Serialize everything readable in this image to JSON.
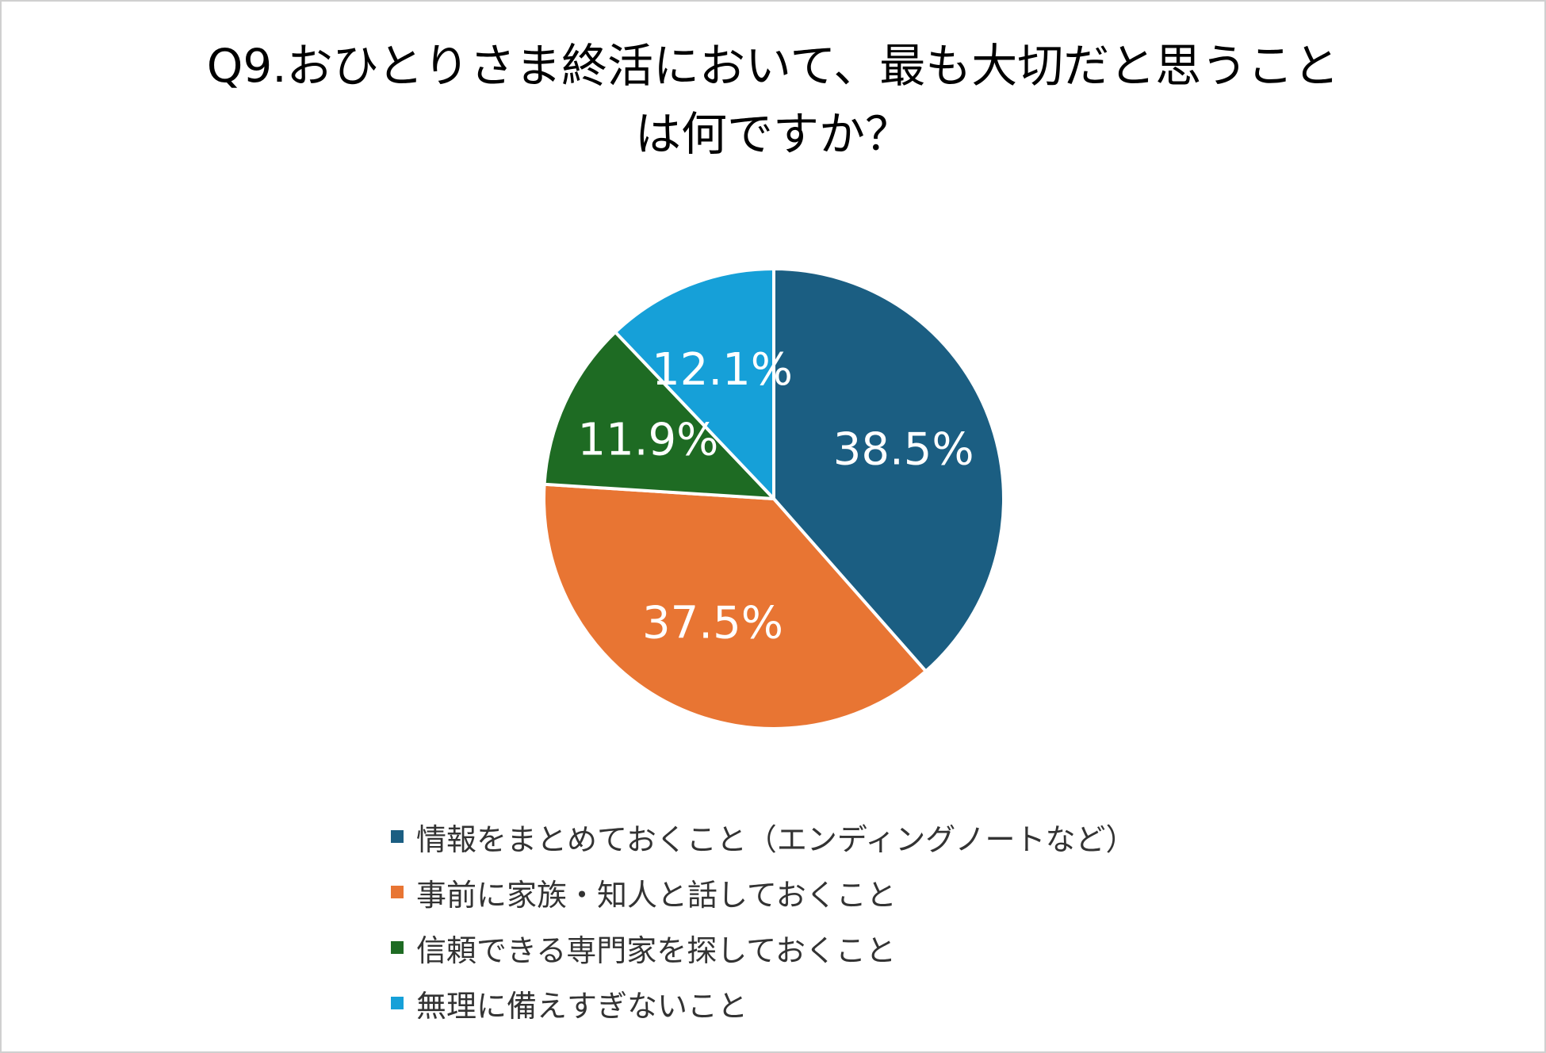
{
  "chart_data": {
    "type": "pie",
    "title": "Q9.おひとりさま終活において、最も大切だと思うことは何ですか？",
    "title_lines": [
      "Q9.おひとりさま終活において、最も大切だと思うこと",
      "は何ですか？"
    ],
    "legend_placement": "bottom",
    "slices": [
      {
        "label": "情報をまとめておくこと（エンディングノートなど）",
        "value": 38.5,
        "display": "38.5%",
        "color": "#1b5e82"
      },
      {
        "label": "事前に家族・知人と話しておくこと",
        "value": 37.5,
        "display": "37.5%",
        "color": "#e87533"
      },
      {
        "label": "信頼できる専門家を探しておくこと",
        "value": 11.9,
        "display": "11.9%",
        "color": "#1e6b23"
      },
      {
        "label": "無理に備えすぎないこと",
        "value": 12.1,
        "display": "12.1%",
        "color": "#16a0d8"
      }
    ]
  },
  "colors": {
    "background": "#ffffff",
    "border": "#d0d0d0",
    "slice_border": "#ffffff",
    "title_text": "#000000",
    "legend_text": "#333333",
    "slice_label_text": "#ffffff"
  }
}
